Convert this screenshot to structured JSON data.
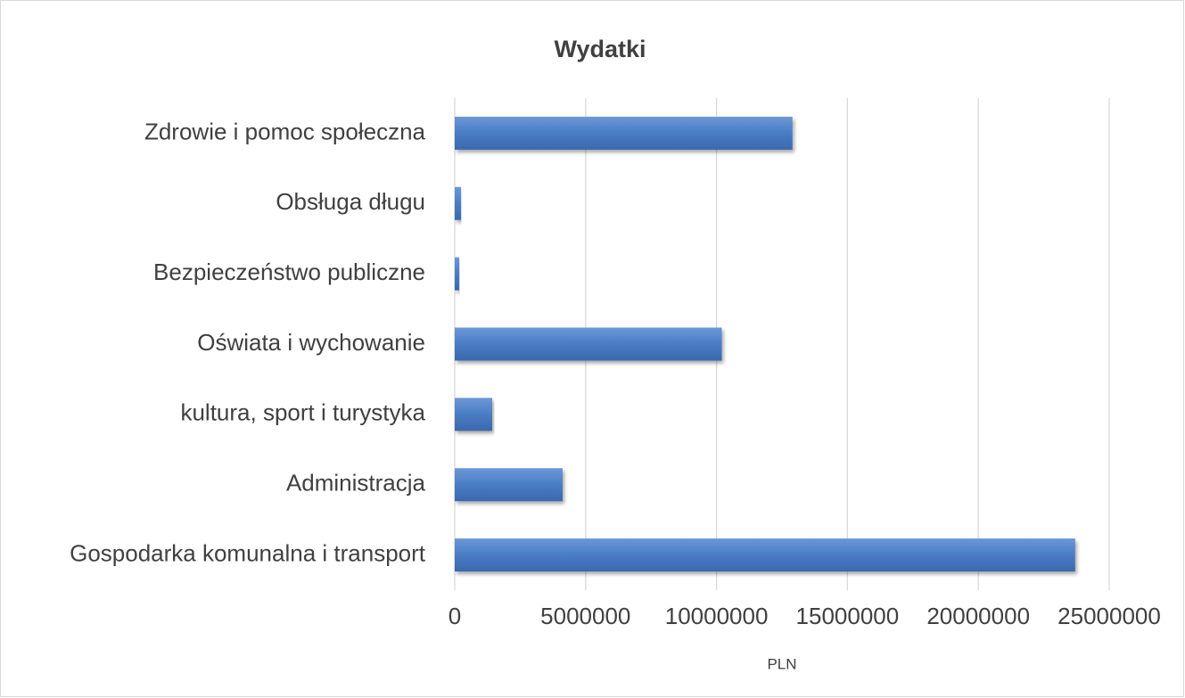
{
  "chart_data": {
    "type": "bar",
    "orientation": "horizontal",
    "title": "Wydatki",
    "x_label": "PLN",
    "categories": [
      "Zdrowie i pomoc społeczna",
      "Obsługa długu",
      "Bezpieczeństwo publiczne",
      "Oświata i wychowanie",
      "kultura, sport i turystyka",
      "Administracja",
      "Gospodarka komunalna i transport"
    ],
    "values": [
      12900000,
      240000,
      170000,
      10200000,
      1430000,
      4120000,
      23700000
    ],
    "color": "#4a7cc4",
    "xlim": [
      0,
      25000000
    ],
    "xticks": [
      0,
      5000000,
      10000000,
      15000000,
      20000000,
      25000000
    ],
    "grid": true
  }
}
